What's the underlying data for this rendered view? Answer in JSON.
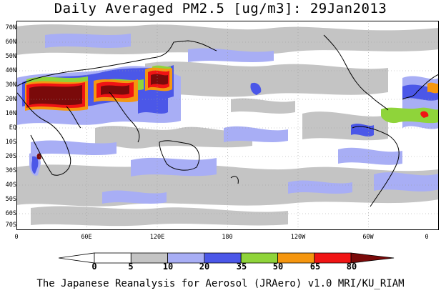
{
  "title": "Daily Averaged PM2.5 [ug/m3]: 29Jan2013",
  "footer": "The Japanese Reanalysis for Aerosol (JRAero) v1.0 MRI/KU_RIAM",
  "lat_labels": [
    "70N",
    "60N",
    "50N",
    "40N",
    "30N",
    "20N",
    "10N",
    "EQ",
    "10S",
    "20S",
    "30S",
    "40S",
    "50S",
    "60S",
    "70S"
  ],
  "lon_labels": [
    "0",
    "60E",
    "120E",
    "180",
    "120W",
    "60W",
    "0"
  ],
  "colorbar": {
    "labels": [
      "0",
      "5",
      "10",
      "20",
      "35",
      "50",
      "65",
      "80"
    ],
    "colors": [
      "#ffffff",
      "#c4c4c4",
      "#a8aef5",
      "#4b57e8",
      "#8fd43a",
      "#f5960f",
      "#f01414",
      "#7a0a0a"
    ]
  }
}
